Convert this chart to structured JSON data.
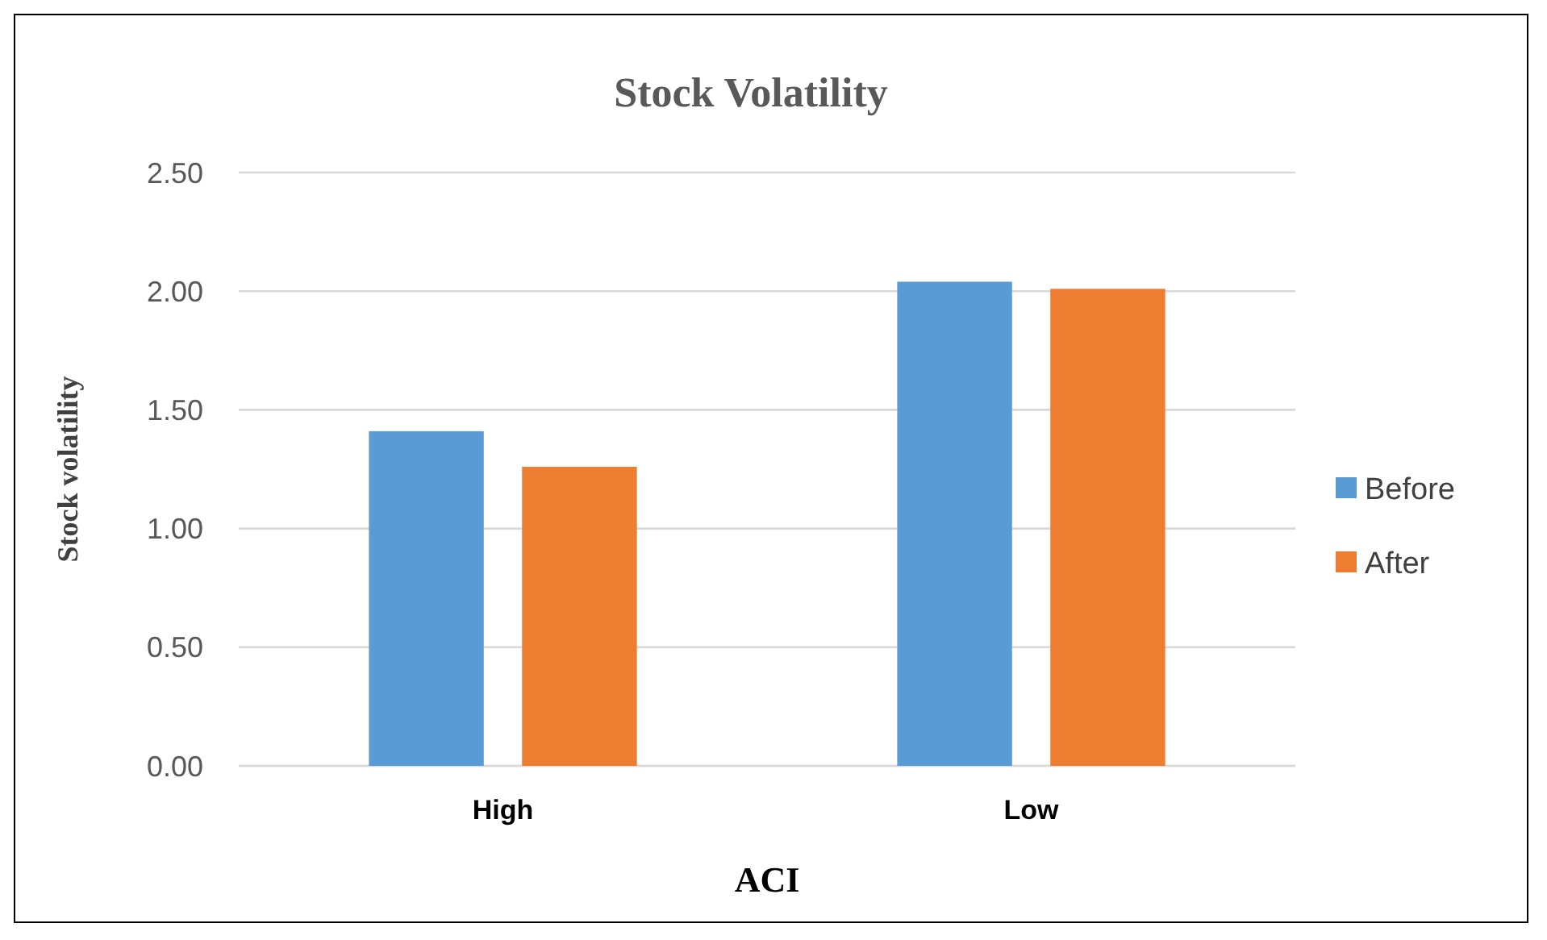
{
  "chart_data": {
    "type": "bar",
    "title": "Stock Volatility",
    "xlabel": "ACI",
    "ylabel": "Stock volatility",
    "categories": [
      "High",
      "Low"
    ],
    "series": [
      {
        "name": "Before",
        "color": "#5b9bd5",
        "values": [
          1.41,
          2.04
        ]
      },
      {
        "name": "After",
        "color": "#ed7d31",
        "values": [
          1.26,
          2.01
        ]
      }
    ],
    "ylim": [
      0,
      2.5
    ],
    "yticks": [
      {
        "value": 0,
        "label": "0.00"
      },
      {
        "value": 0.5,
        "label": "0.50"
      },
      {
        "value": 1,
        "label": "1.00"
      },
      {
        "value": 1.5,
        "label": "1.50"
      },
      {
        "value": 2,
        "label": "2.00"
      },
      {
        "value": 2.5,
        "label": "2.50"
      }
    ],
    "grid": "y",
    "legend": "right"
  }
}
